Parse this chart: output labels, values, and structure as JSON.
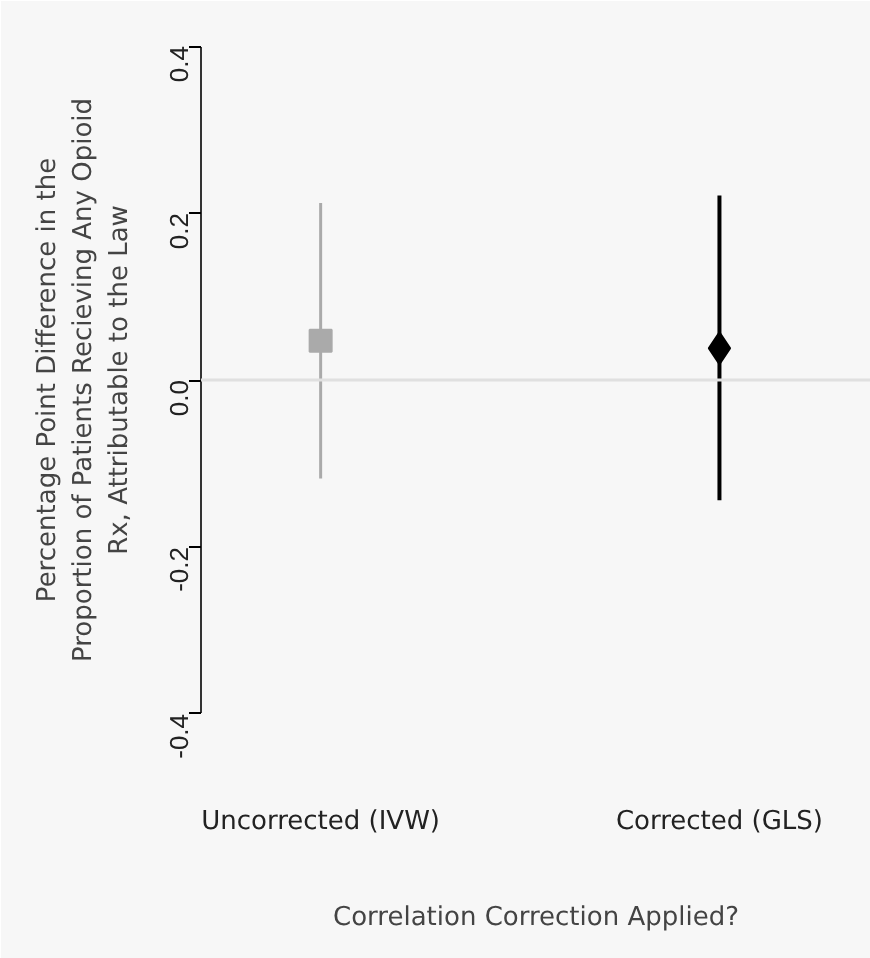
{
  "chart_data": {
    "type": "scatter",
    "xlabel": "Correlation Correction Applied?",
    "ylabel": "Percentage Point Difference in the\nProportion of Patients Recieving Any Opioid\nRx, Attributable to the Law",
    "categories": [
      "Uncorrected (IVW)",
      "Corrected (GLS)"
    ],
    "series": [
      {
        "color": "#aaaaaa",
        "marker": "square",
        "values": [
          0.047,
          null
        ],
        "errors": [
          [
            -0.118,
            0.212
          ],
          null
        ]
      },
      {
        "color": "#000000",
        "marker": "diamond",
        "values": [
          null,
          0.038
        ],
        "errors": [
          null,
          [
            -0.144,
            0.221
          ]
        ]
      }
    ],
    "ylim": [
      -0.43,
      0.43
    ],
    "yticks": [
      -0.4,
      -0.2,
      {
        "value": 0,
        "label": "0.0"
      },
      0.2,
      0.4
    ],
    "ref_lines": [
      {
        "axis": "y",
        "value": 0,
        "color": "#e0e0e0"
      }
    ],
    "grid": false
  }
}
